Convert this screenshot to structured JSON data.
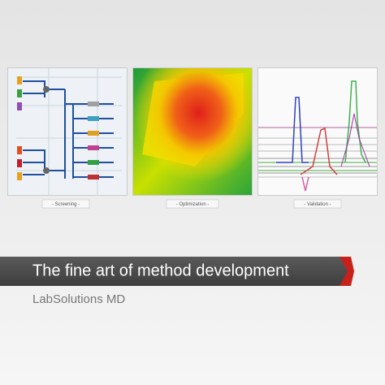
{
  "frames": [
    {
      "label": "- Screening -"
    },
    {
      "label": "- Optimization -"
    },
    {
      "label": "- Validation -"
    }
  ],
  "banner": {
    "title": "The fine art of method development",
    "subtitle": "LabSolutions MD"
  }
}
